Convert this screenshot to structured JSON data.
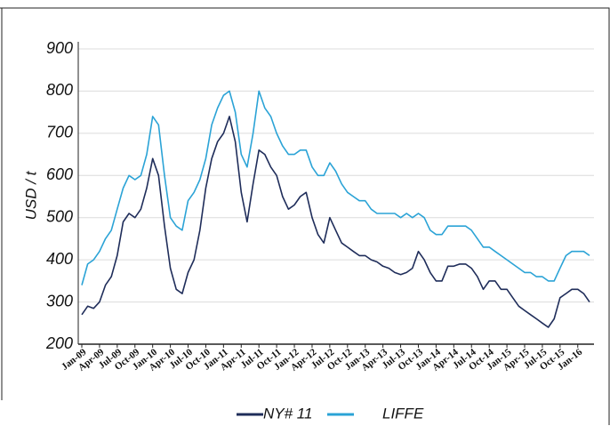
{
  "chart_data": {
    "type": "line",
    "y_label": "USD / t",
    "categories": [
      "Jan-09",
      null,
      null,
      "Apr-09",
      null,
      null,
      "Jul-09",
      null,
      null,
      "Oct-09",
      null,
      null,
      "Jan-10",
      null,
      null,
      "Apr-10",
      null,
      null,
      "Jul-10",
      null,
      null,
      "Oct-10",
      null,
      null,
      "Jan-11",
      null,
      null,
      "Apr-11",
      null,
      null,
      "Jul-11",
      null,
      null,
      "Oct-11",
      null,
      null,
      "Jan-12",
      null,
      null,
      "Apr-12",
      null,
      null,
      "Jul-12",
      null,
      null,
      "Oct-12",
      null,
      null,
      "Jan-13",
      null,
      null,
      "Apr-13",
      null,
      null,
      "Jul-13",
      null,
      null,
      "Oct-13",
      null,
      null,
      "Jan-14",
      null,
      null,
      "Apr-14",
      null,
      null,
      "Jul-14",
      null,
      null,
      "Oct-14",
      null,
      null,
      "Jan-15",
      null,
      null,
      "Apr-15",
      null,
      null,
      "Jul-15",
      null,
      null,
      "Oct-15",
      null,
      null,
      "Jan-16",
      null,
      null
    ],
    "series": [
      {
        "name": "NY# 11",
        "color": "#1f2d5a",
        "values": [
          270,
          290,
          285,
          300,
          340,
          360,
          410,
          490,
          510,
          500,
          520,
          570,
          640,
          600,
          480,
          380,
          330,
          320,
          370,
          400,
          470,
          570,
          640,
          680,
          700,
          740,
          680,
          560,
          490,
          580,
          660,
          650,
          620,
          600,
          550,
          520,
          530,
          550,
          560,
          500,
          460,
          440,
          500,
          470,
          440,
          430,
          420,
          410,
          410,
          400,
          395,
          385,
          380,
          370,
          365,
          370,
          380,
          420,
          400,
          370,
          350,
          350,
          385,
          385,
          390,
          390,
          380,
          360,
          330,
          350,
          350,
          330,
          330,
          310,
          290,
          280,
          270,
          260,
          250,
          240,
          260,
          310,
          320,
          330,
          330,
          320,
          300
        ]
      },
      {
        "name": "LIFFE",
        "color": "#2ba3d6",
        "values": [
          340,
          390,
          400,
          420,
          450,
          470,
          520,
          570,
          600,
          590,
          600,
          650,
          740,
          720,
          600,
          500,
          480,
          470,
          540,
          560,
          590,
          640,
          720,
          760,
          790,
          800,
          750,
          650,
          620,
          700,
          800,
          760,
          740,
          700,
          670,
          650,
          650,
          660,
          660,
          620,
          600,
          600,
          630,
          610,
          580,
          560,
          550,
          540,
          540,
          520,
          510,
          510,
          510,
          510,
          500,
          510,
          500,
          510,
          500,
          470,
          460,
          460,
          480,
          480,
          480,
          480,
          470,
          450,
          430,
          430,
          420,
          410,
          400,
          390,
          380,
          370,
          370,
          360,
          360,
          350,
          350,
          380,
          410,
          420,
          420,
          420,
          410
        ]
      }
    ],
    "ylim": [
      200,
      900
    ],
    "yticks": [
      200,
      300,
      400,
      500,
      600,
      700,
      800,
      900
    ],
    "grid": true,
    "legend": "bottom"
  }
}
